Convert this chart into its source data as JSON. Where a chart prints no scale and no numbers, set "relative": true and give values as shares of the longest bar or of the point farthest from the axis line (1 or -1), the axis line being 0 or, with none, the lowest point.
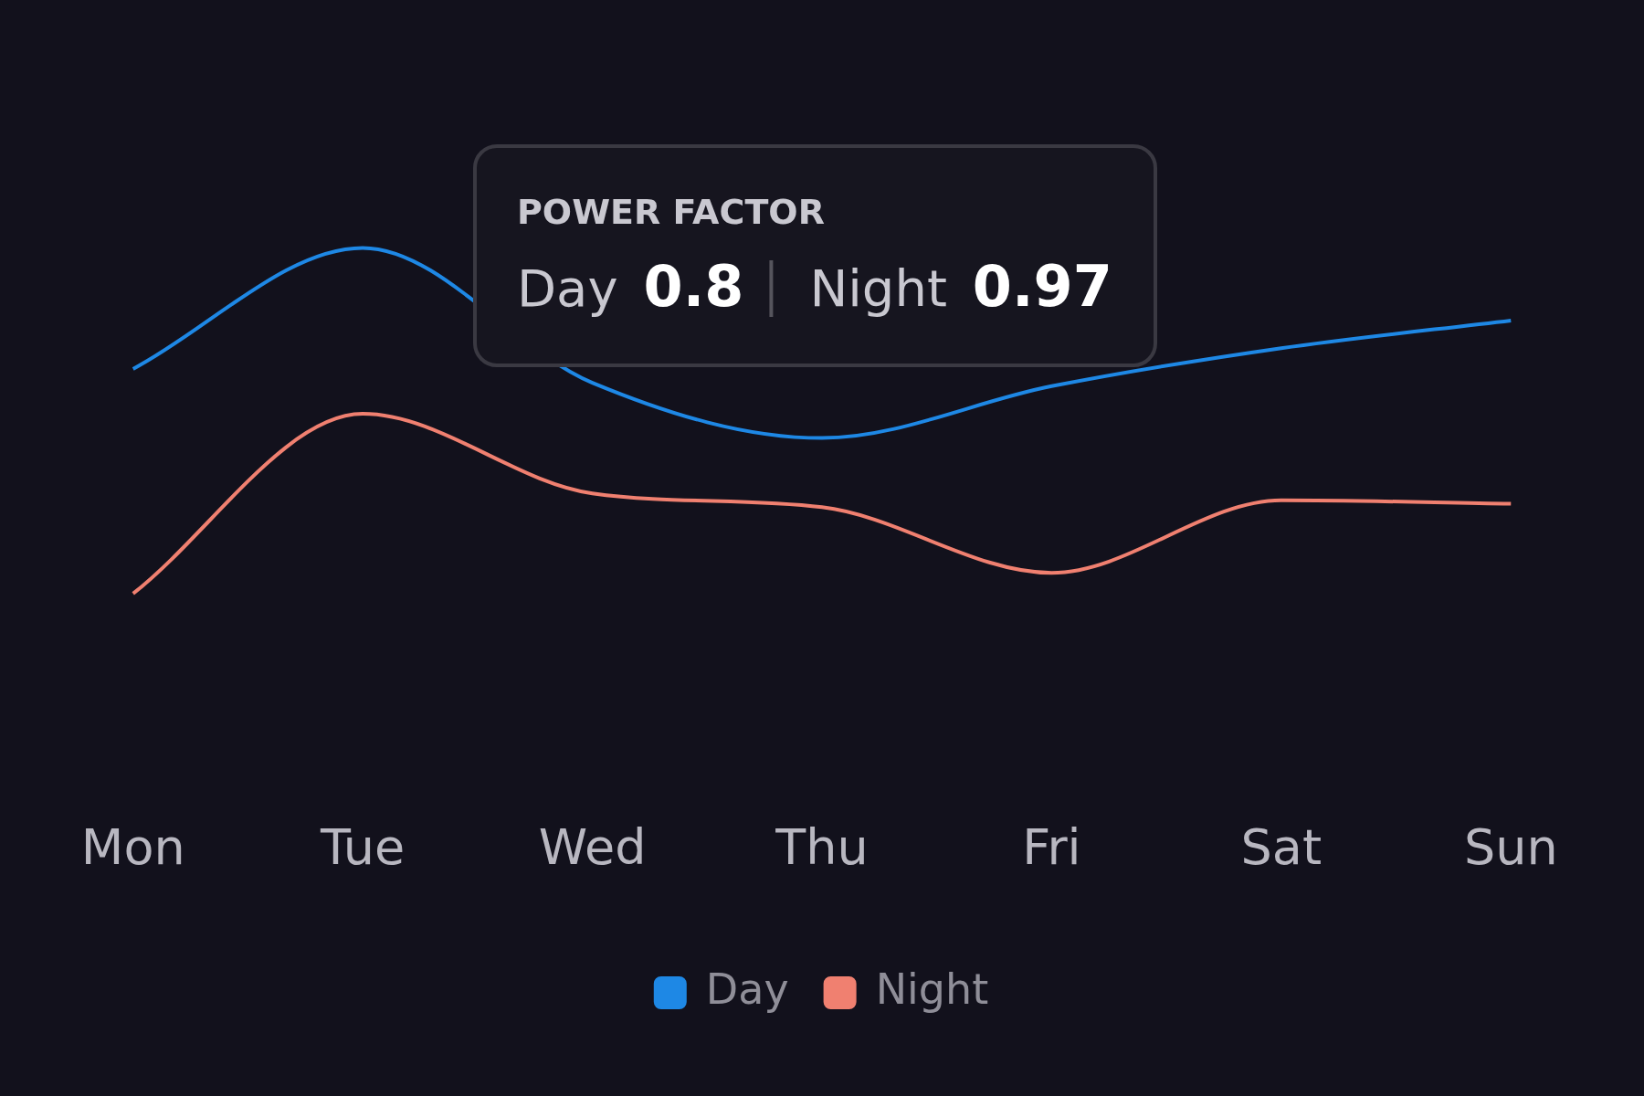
{
  "chart_data": {
    "type": "line",
    "relative": true,
    "categories": [
      "Mon",
      "Tue",
      "Wed",
      "Thu",
      "Fri",
      "Sat",
      "Sun"
    ],
    "series": [
      {
        "name": "Day",
        "color": "#1e88e5",
        "values": [
          0.65,
          1,
          0.61,
          0.45,
          0.6,
          0.71,
          0.79
        ]
      },
      {
        "name": "Night",
        "color": "#f08070",
        "values": [
          0,
          0.52,
          0.29,
          0.25,
          0.06,
          0.27,
          0.26
        ]
      }
    ],
    "annotations": [
      "POWER FACTOR",
      "Day",
      "0.8",
      "Night",
      "0.97"
    ],
    "legend": "bottom",
    "marker": "none",
    "line_style": "solid"
  }
}
